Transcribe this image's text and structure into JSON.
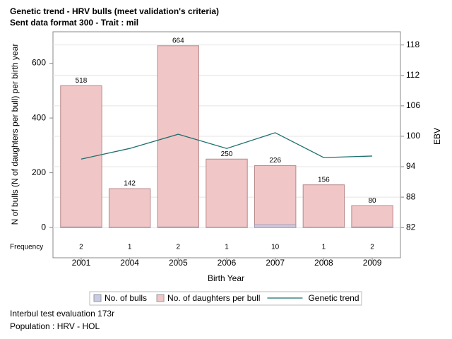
{
  "chart_data": {
    "type": "bar",
    "title": "Genetic trend - HRV bulls (meet validation's criteria)",
    "subtitle": "Sent data format 300 - Trait : mil",
    "x_label": "Birth Year",
    "y_label": "N of bulls (N of daughters per bull) per birth year",
    "y2_label": "EBV",
    "frequency_label": "Frequency",
    "categories": [
      "2001",
      "2004",
      "2005",
      "2006",
      "2007",
      "2008",
      "2009"
    ],
    "series": [
      {
        "name": "No. of bulls",
        "type": "bar",
        "color": "#c8cbe6",
        "values": [
          2,
          1,
          2,
          1,
          10,
          1,
          2
        ]
      },
      {
        "name": "No. of daughters per bull",
        "type": "bar",
        "color": "#f0c6c6",
        "values": [
          518,
          142,
          664,
          250,
          226,
          156,
          80
        ]
      },
      {
        "name": "Genetic trend",
        "type": "line",
        "axis": "y2",
        "color": "#1f6f6f",
        "values": [
          95.5,
          97.6,
          100.4,
          97.6,
          100.7,
          95.8,
          96.1
        ]
      }
    ],
    "ylim": [
      -28,
      715
    ],
    "yticks": [
      0,
      200,
      400,
      600
    ],
    "y2lim": [
      80.5,
      120.6
    ],
    "y2ticks": [
      82,
      88,
      94,
      100,
      106,
      112,
      118
    ],
    "grid": true,
    "footnotes": [
      "Interbul test evaluation 173r",
      "Population : HRV - HOL"
    ]
  }
}
